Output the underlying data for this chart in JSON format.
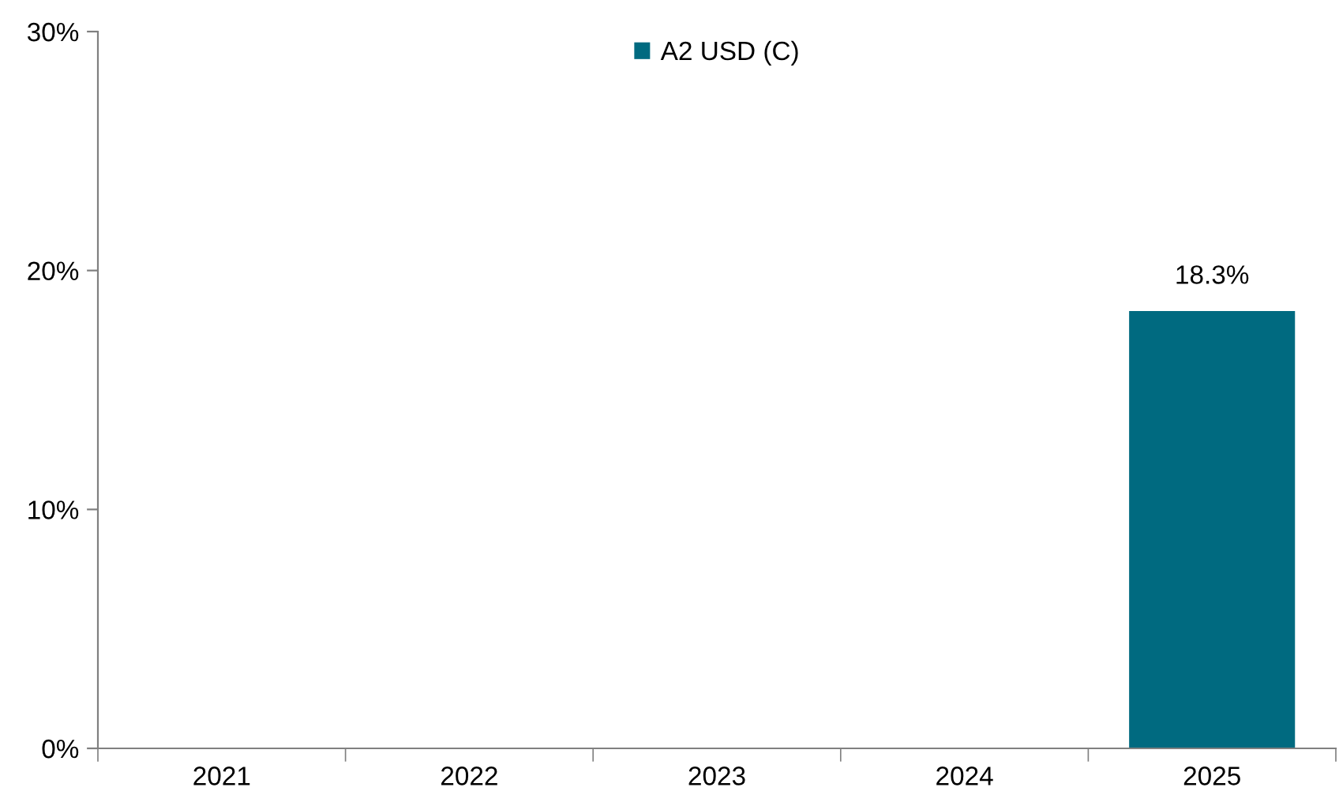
{
  "chart_data": {
    "type": "bar",
    "categories": [
      "2021",
      "2022",
      "2023",
      "2024",
      "2025"
    ],
    "series": [
      {
        "name": "A2 USD (C)",
        "color": "#006a80",
        "values": [
          null,
          null,
          null,
          null,
          18.3
        ],
        "value_labels": [
          null,
          null,
          null,
          null,
          "18.3%"
        ]
      }
    ],
    "ylim": [
      0,
      30
    ],
    "yticks": [
      {
        "value": 0,
        "label": "0%"
      },
      {
        "value": 10,
        "label": "10%"
      },
      {
        "value": 20,
        "label": "20%"
      },
      {
        "value": 30,
        "label": "30%"
      }
    ],
    "grid": false,
    "legend": "top"
  }
}
